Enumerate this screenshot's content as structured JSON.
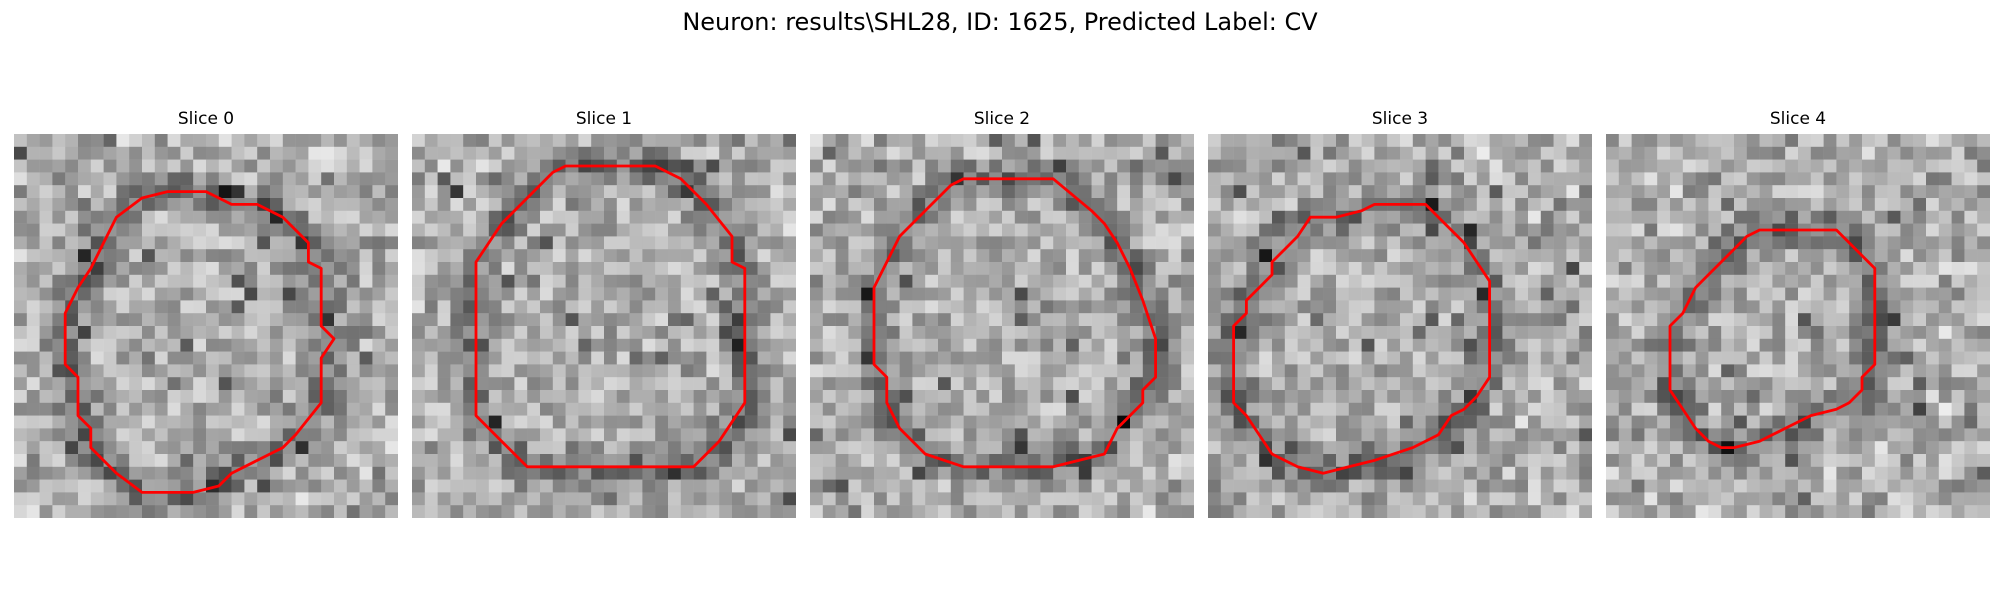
{
  "figure": {
    "title": "Neuron: results\\SHL28, ID: 1625, Predicted Label: CV"
  },
  "contour_color": "#ff0000",
  "colormap": "grayscale",
  "panels": [
    {
      "title": "Slice 0",
      "image_description": "grayscale microscopy crop",
      "contour": [
        [
          12,
          4.5
        ],
        [
          15,
          4.5
        ],
        [
          17,
          5.5
        ],
        [
          19,
          5.5
        ],
        [
          21,
          6.5
        ],
        [
          22,
          7.5
        ],
        [
          23,
          8.5
        ],
        [
          23,
          10
        ],
        [
          24,
          10.5
        ],
        [
          24,
          15
        ],
        [
          25,
          16
        ],
        [
          24,
          17.5
        ],
        [
          24,
          21
        ],
        [
          22,
          23.5
        ],
        [
          21,
          24.5
        ],
        [
          19,
          25.5
        ],
        [
          17,
          26.5
        ],
        [
          16,
          27.5
        ],
        [
          14,
          28
        ],
        [
          10,
          28
        ],
        [
          8,
          26.5
        ],
        [
          6,
          24.5
        ],
        [
          6,
          23
        ],
        [
          5,
          22
        ],
        [
          5,
          19
        ],
        [
          4,
          18
        ],
        [
          4,
          14
        ],
        [
          5,
          12
        ],
        [
          6,
          10.5
        ],
        [
          7,
          8.5
        ],
        [
          8,
          6.5
        ],
        [
          10,
          5
        ]
      ]
    },
    {
      "title": "Slice 1",
      "image_description": "grayscale microscopy crop",
      "contour": [
        [
          12,
          2.5
        ],
        [
          19,
          2.5
        ],
        [
          21,
          3.5
        ],
        [
          23,
          5.5
        ],
        [
          25,
          8
        ],
        [
          25,
          10
        ],
        [
          26,
          10.5
        ],
        [
          26,
          21
        ],
        [
          24,
          24
        ],
        [
          22,
          26
        ],
        [
          19,
          26
        ],
        [
          13,
          26
        ],
        [
          9,
          26
        ],
        [
          7,
          24
        ],
        [
          5,
          22
        ],
        [
          5,
          10
        ],
        [
          7,
          7
        ],
        [
          9,
          5
        ],
        [
          11,
          3
        ]
      ]
    },
    {
      "title": "Slice 2",
      "image_description": "grayscale microscopy crop",
      "contour": [
        [
          12,
          3.5
        ],
        [
          19,
          3.5
        ],
        [
          22,
          6
        ],
        [
          23,
          7
        ],
        [
          24,
          8.5
        ],
        [
          25,
          10.5
        ],
        [
          26,
          13
        ],
        [
          27,
          16
        ],
        [
          27,
          19
        ],
        [
          26,
          20
        ],
        [
          26,
          21
        ],
        [
          25,
          22
        ],
        [
          24,
          23
        ],
        [
          23,
          25
        ],
        [
          21,
          25.5
        ],
        [
          19,
          26
        ],
        [
          12,
          26
        ],
        [
          9,
          25
        ],
        [
          7,
          23
        ],
        [
          6,
          21
        ],
        [
          6,
          19
        ],
        [
          5,
          18
        ],
        [
          5,
          12
        ],
        [
          6,
          10
        ],
        [
          7,
          8
        ],
        [
          9,
          6
        ],
        [
          11,
          4
        ]
      ]
    },
    {
      "title": "Slice 3",
      "image_description": "grayscale microscopy crop",
      "contour": [
        [
          13,
          5.5
        ],
        [
          17,
          5.5
        ],
        [
          18,
          6.5
        ],
        [
          19,
          7.5
        ],
        [
          20,
          8.5
        ],
        [
          21,
          10
        ],
        [
          22,
          11.5
        ],
        [
          22,
          16
        ],
        [
          22,
          19
        ],
        [
          21,
          20.5
        ],
        [
          20,
          21.5
        ],
        [
          19,
          22
        ],
        [
          18,
          23.5
        ],
        [
          16,
          24.5
        ],
        [
          13,
          25.5
        ],
        [
          11,
          26
        ],
        [
          9,
          26.5
        ],
        [
          7,
          26
        ],
        [
          5,
          25
        ],
        [
          3,
          22
        ],
        [
          2,
          21
        ],
        [
          2,
          15
        ],
        [
          3,
          14
        ],
        [
          3,
          13
        ],
        [
          4,
          12
        ],
        [
          5,
          11
        ],
        [
          5,
          10
        ],
        [
          6,
          9
        ],
        [
          7,
          8
        ],
        [
          8,
          6.5
        ],
        [
          10,
          6.5
        ],
        [
          12,
          6
        ]
      ]
    },
    {
      "title": "Slice 4",
      "image_description": "grayscale microscopy crop",
      "contour": [
        [
          12,
          7.5
        ],
        [
          18,
          7.5
        ],
        [
          19,
          8.5
        ],
        [
          20,
          9.5
        ],
        [
          21,
          10.5
        ],
        [
          21,
          18
        ],
        [
          20,
          19
        ],
        [
          20,
          20
        ],
        [
          19,
          21
        ],
        [
          18,
          21.5
        ],
        [
          16,
          22
        ],
        [
          15,
          22.5
        ],
        [
          14,
          23
        ],
        [
          13,
          23.5
        ],
        [
          12,
          24
        ],
        [
          10,
          24.5
        ],
        [
          9,
          24.5
        ],
        [
          8,
          24
        ],
        [
          7,
          23
        ],
        [
          5,
          20
        ],
        [
          5,
          15
        ],
        [
          6,
          14
        ],
        [
          7,
          12
        ],
        [
          8,
          11
        ],
        [
          9,
          10
        ],
        [
          10,
          9
        ],
        [
          11,
          8
        ]
      ]
    }
  ]
}
